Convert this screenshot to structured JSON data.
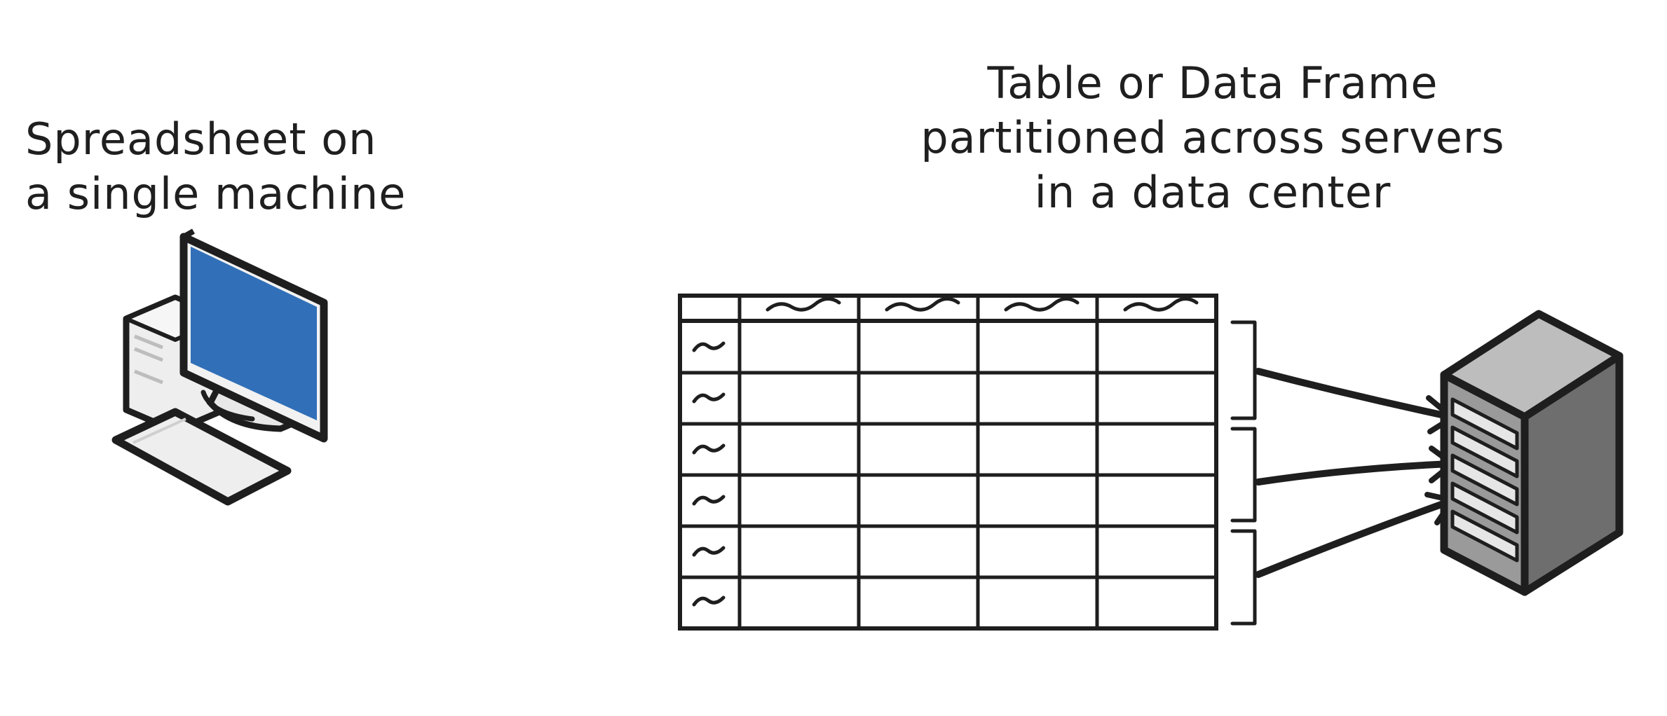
{
  "left_caption": {
    "line1": "Spreadsheet on",
    "line2": "a single machine"
  },
  "right_caption": {
    "line1": "Table or Data Frame",
    "line2": "partitioned across servers",
    "line3": "in a data center"
  },
  "table": {
    "header_columns": 4,
    "rows": 6,
    "cell_glyph": "~"
  },
  "partitions": 3,
  "colors": {
    "ink": "#1e1e1e",
    "monitor_screen": "#3170b8",
    "server_body": "#9a9a9a",
    "server_side": "#6e6e6e",
    "computer_body": "#eeeeee"
  },
  "icons": {
    "computer": "desktop-computer-icon",
    "server": "server-rack-icon"
  }
}
